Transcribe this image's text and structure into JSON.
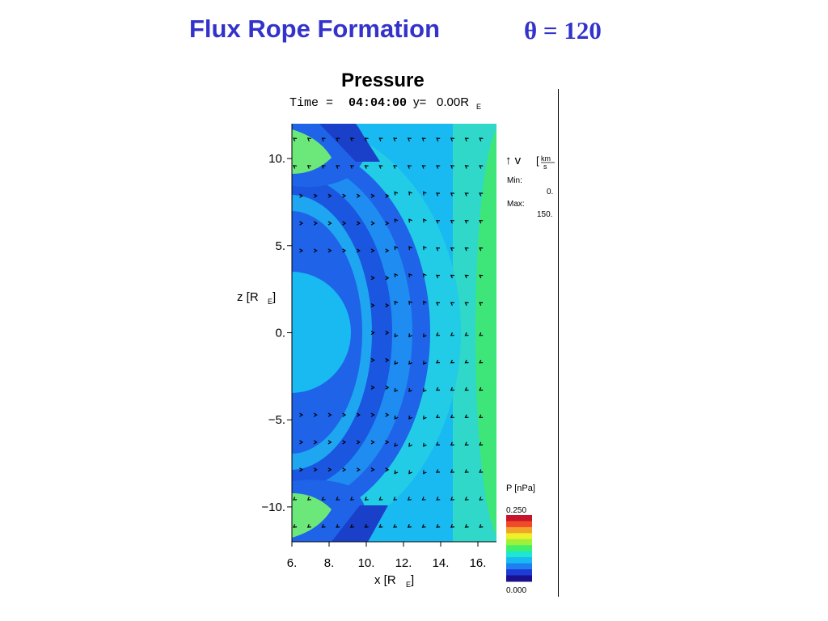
{
  "header": {
    "title": "Flux Rope Formation",
    "angle_label": "θ = 120",
    "subtitle": "Pressure"
  },
  "plot_header": {
    "time_label": "Time = ",
    "time_value": "04:04:00",
    "y_label": "y=",
    "y_value": "0.00R",
    "y_sub": "E"
  },
  "vector_legend": {
    "symbol": "↑ v",
    "unit_num": "km",
    "unit_den": "s",
    "min_label": "Min:",
    "min_value": "0.",
    "max_label": "Max:",
    "max_value": "150."
  },
  "colorbar": {
    "label": "P [nPa]",
    "max_value": "0.250",
    "min_value": "0.000",
    "colors": [
      "#1a0f8c",
      "#1f3bd6",
      "#1e7ff0",
      "#19b9f2",
      "#1ee6d2",
      "#3ef06a",
      "#9ef03a",
      "#eef02a",
      "#f0a52a",
      "#f04a2a",
      "#c8142a"
    ]
  },
  "chart_data": {
    "type": "heatmap",
    "title": "Pressure",
    "xlabel": "x [R",
    "xlabel_sub": "E",
    "ylabel": "z [R",
    "ylabel_sub": "E",
    "xlim": [
      6,
      17
    ],
    "ylim": [
      -12,
      12
    ],
    "x_ticks": [
      6,
      8,
      10,
      12,
      14,
      16
    ],
    "x_tick_labels": [
      "6.",
      "8.",
      "10.",
      "12.",
      "14.",
      "16."
    ],
    "y_ticks": [
      10,
      5,
      0,
      -5,
      -10
    ],
    "y_tick_labels": [
      "10.",
      "5.",
      "0.",
      "−5.",
      "−10."
    ],
    "grid": false,
    "colormap": "rainbow",
    "value_range": [
      0.0,
      0.25
    ],
    "field": "P [nPa]",
    "overlay": "velocity vectors"
  }
}
